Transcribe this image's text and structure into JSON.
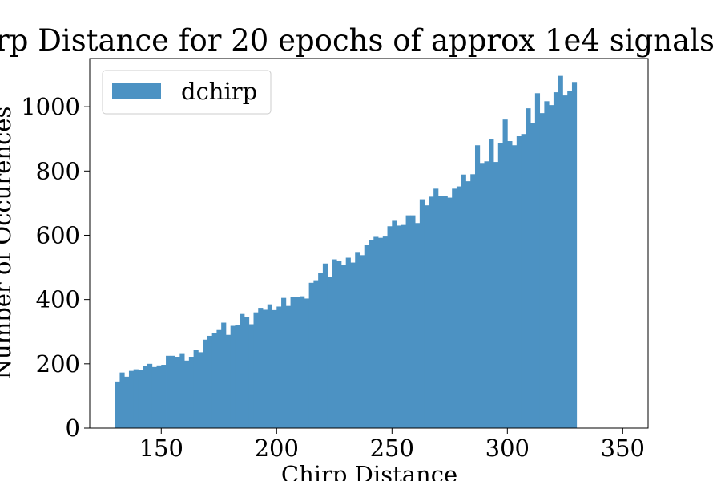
{
  "colors": {
    "bar": "#4c92c3",
    "frame": "#000000",
    "legend_border": "#cccccc"
  },
  "chart_data": {
    "type": "bar",
    "title": "rp Distance for 20 epochs of approx 1e4 signals",
    "xlabel": "Chirp Distance",
    "ylabel": "Number of Occurences",
    "xlim": [
      119,
      361
    ],
    "ylim": [
      0,
      1150
    ],
    "xticks": [
      150,
      200,
      250,
      300,
      350
    ],
    "xtick_labels": [
      "150",
      "200",
      "250",
      "300",
      "350"
    ],
    "yticks": [
      0,
      200,
      400,
      600,
      800,
      1000
    ],
    "ytick_labels": [
      "0",
      "200",
      "400",
      "600",
      "800",
      "1000"
    ],
    "legend_position": "upper-left",
    "grid": false,
    "series": [
      {
        "name": "dchirp",
        "bin_start": 130,
        "bin_width": 2,
        "values": [
          145,
          173,
          160,
          178,
          183,
          180,
          193,
          200,
          190,
          195,
          197,
          225,
          225,
          222,
          233,
          210,
          222,
          243,
          236,
          275,
          287,
          296,
          305,
          328,
          290,
          318,
          320,
          355,
          345,
          323,
          360,
          374,
          368,
          385,
          367,
          378,
          405,
          380,
          407,
          408,
          410,
          403,
          452,
          460,
          482,
          512,
          470,
          525,
          520,
          507,
          530,
          515,
          548,
          538,
          570,
          585,
          595,
          592,
          596,
          628,
          645,
          630,
          632,
          662,
          662,
          638,
          712,
          693,
          720,
          745,
          722,
          722,
          717,
          745,
          752,
          789,
          768,
          790,
          880,
          825,
          830,
          898,
          828,
          888,
          960,
          893,
          880,
          908,
          915,
          995,
          950,
          1042,
          980,
          1017,
          1005,
          1045,
          1096,
          1035,
          1050,
          1077
        ]
      }
    ]
  }
}
